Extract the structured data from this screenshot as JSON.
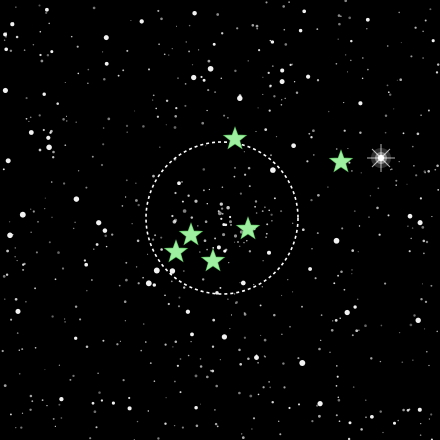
{
  "image": {
    "background_color": "#000000",
    "star_color": "#ffffff",
    "marker_color": "#9ef0a0",
    "marker_icon": "star-icon",
    "circle_color": "#ffffff",
    "circle_style": "dashed",
    "marker_count": 6
  }
}
